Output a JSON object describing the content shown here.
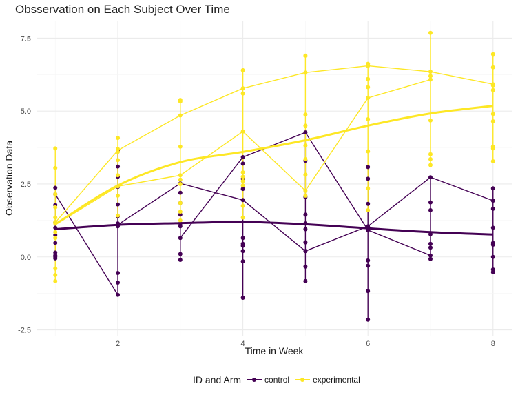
{
  "chart_data": {
    "type": "line",
    "title": "Obsservation on Each Subject Over Time",
    "xlabel": "Time in Week",
    "ylabel": "Observation Data",
    "xlim": [
      0.7,
      8.3
    ],
    "ylim": [
      -2.7,
      8.1
    ],
    "x_ticks": [
      2,
      4,
      6,
      8
    ],
    "x_tick_labels": [
      "2",
      "4",
      "6",
      "8"
    ],
    "y_ticks": [
      -2.5,
      0,
      2.5,
      5,
      7.5
    ],
    "y_tick_labels": [
      "-2.5",
      "0.0",
      "2.5",
      "5.0",
      "7.5"
    ],
    "grid": true,
    "legend": {
      "title": "ID and Arm",
      "placement": "bottom",
      "entries": [
        {
          "label": "control",
          "color": "#440154"
        },
        {
          "label": "experimental",
          "color": "#FDE725"
        }
      ]
    },
    "points": {
      "control": {
        "1": [
          2.37,
          2.15,
          1.78,
          1.18,
          1.0,
          0.75,
          0.48,
          0.15,
          0.05,
          0.0,
          -0.05
        ],
        "2": [
          3.65,
          3.1,
          2.75,
          2.4,
          1.8,
          1.4,
          1.15,
          1.1,
          1.05,
          -0.55,
          -0.88,
          -1.3
        ],
        "3": [
          2.52,
          2.2,
          1.85,
          1.45,
          1.15,
          1.05,
          0.65,
          0.1,
          -0.1
        ],
        "4": [
          3.42,
          3.2,
          2.68,
          2.33,
          1.95,
          0.65,
          0.45,
          0.38,
          0.2,
          -0.15,
          -1.4
        ],
        "5": [
          4.27,
          3.3,
          2.05,
          1.45,
          1.15,
          0.95,
          0.5,
          0.2,
          -0.33,
          -0.83
        ],
        "6": [
          3.08,
          2.68,
          1.82,
          1.05,
          0.92,
          -0.12,
          -0.3,
          -1.17,
          -2.15
        ],
        "7": [
          2.73,
          1.87,
          1.6,
          0.78,
          0.45,
          0.32,
          0.05,
          -0.07
        ],
        "8": [
          2.35,
          1.93,
          1.65,
          1.0,
          0.48,
          0.42,
          0.0,
          -0.43,
          -0.52
        ]
      },
      "experimental": {
        "1": [
          3.72,
          3.05,
          2.15,
          1.7,
          1.35,
          1.2,
          1.15,
          0.85,
          0.65,
          -0.4,
          -0.62,
          -0.83
        ],
        "2": [
          4.08,
          3.7,
          3.6,
          3.32,
          2.8,
          2.42,
          2.1,
          1.42
        ],
        "3": [
          5.38,
          5.33,
          4.85,
          3.78,
          2.8,
          2.65,
          2.5,
          1.85,
          1.55,
          1.25
        ],
        "4": [
          6.4,
          5.78,
          5.6,
          4.3,
          2.9,
          2.75,
          2.6,
          2.45,
          1.75,
          1.35
        ],
        "5": [
          6.9,
          6.32,
          4.88,
          4.5,
          3.82,
          3.35,
          2.82,
          2.27,
          2.1
        ],
        "6": [
          6.62,
          6.55,
          6.1,
          5.82,
          5.45,
          4.72,
          3.62,
          2.35,
          1.6
        ],
        "7": [
          7.68,
          6.35,
          6.2,
          6.08,
          4.68,
          3.52,
          3.35,
          3.15
        ],
        "8": [
          6.95,
          6.5,
          5.92,
          5.88,
          5.72,
          4.9,
          4.65,
          3.78,
          3.72,
          3.28
        ]
      }
    },
    "series": [
      {
        "arm": "control",
        "kind": "subject",
        "x": [
          1,
          2
        ],
        "y": [
          2.15,
          -1.3
        ]
      },
      {
        "arm": "control",
        "kind": "subject",
        "x": [
          2,
          3,
          4,
          5,
          6,
          7,
          8
        ],
        "y": [
          1.1,
          2.52,
          1.95,
          0.2,
          1.05,
          2.73,
          1.93
        ]
      },
      {
        "arm": "control",
        "kind": "subject",
        "x": [
          3,
          4,
          5,
          6,
          7
        ],
        "y": [
          0.65,
          3.42,
          4.27,
          0.92,
          0.05
        ]
      },
      {
        "arm": "experimental",
        "kind": "subject",
        "x": [
          1,
          2,
          3,
          4,
          5,
          6,
          7,
          8
        ],
        "y": [
          1.18,
          3.65,
          4.85,
          5.78,
          6.32,
          6.55,
          6.35,
          5.92
        ]
      },
      {
        "arm": "experimental",
        "kind": "subject",
        "x": [
          1,
          2,
          3,
          4,
          5,
          6,
          7
        ],
        "y": [
          1.1,
          2.42,
          2.8,
          4.3,
          2.27,
          5.45,
          6.08
        ]
      },
      {
        "arm": "control",
        "kind": "smooth",
        "x": [
          1,
          2,
          3,
          4,
          5,
          6,
          7,
          8
        ],
        "y": [
          0.95,
          1.1,
          1.16,
          1.2,
          1.12,
          0.98,
          0.85,
          0.77
        ]
      },
      {
        "arm": "experimental",
        "kind": "smooth",
        "x": [
          1,
          2,
          3,
          4,
          5,
          6,
          7,
          8
        ],
        "y": [
          1.12,
          2.45,
          3.25,
          3.6,
          4.0,
          4.5,
          4.92,
          5.18
        ]
      }
    ]
  }
}
